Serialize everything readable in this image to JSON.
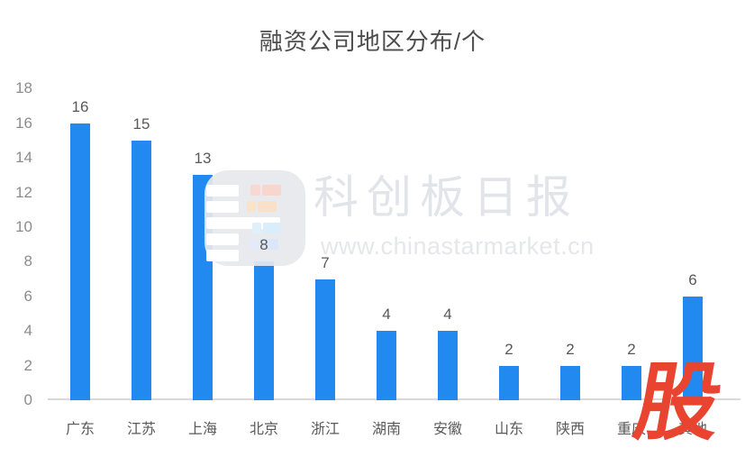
{
  "title": "融资公司地区分布/个",
  "watermark": {
    "brand": "科创板日报",
    "url": "www.chinastarmarket.cn",
    "icon": "star-market-app-icon"
  },
  "corner_logo": "股",
  "colors": {
    "bar": "#2189f0",
    "axis_line": "#d9d9d9",
    "title_text": "#4d4d4d",
    "tick_text": "#8c8c8c",
    "value_label": "#595959",
    "category_label": "#595959",
    "watermark_text": "#e3e4e9",
    "watermark_icon_bg": "#e7e9ed",
    "corner_logo_red": "#e84430"
  },
  "chart_data": {
    "type": "bar",
    "title": "融资公司地区分布/个",
    "categories": [
      "广东",
      "江苏",
      "上海",
      "北京",
      "浙江",
      "湖南",
      "安徽",
      "山东",
      "陕西",
      "重庆",
      "其他"
    ],
    "values": [
      16,
      15,
      13,
      8,
      7,
      4,
      4,
      2,
      2,
      2,
      6
    ],
    "yticks": [
      0,
      2,
      4,
      6,
      8,
      10,
      12,
      14,
      16,
      18
    ],
    "ylim": [
      0,
      18
    ],
    "xlabel": "",
    "ylabel": "",
    "grid": false,
    "legend_position": "none",
    "value_labels_shown": true,
    "bar_color": "#2189f0"
  }
}
